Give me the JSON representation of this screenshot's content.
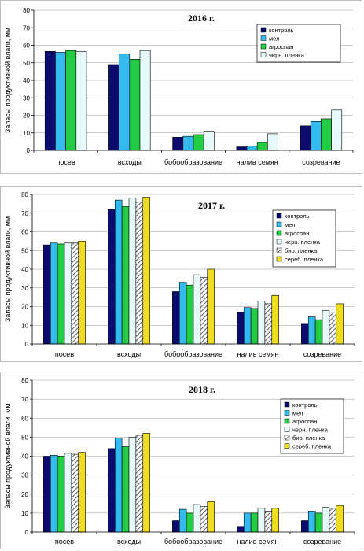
{
  "colors": {
    "kontrol": "#0c0c6e",
    "mel": "#33bbee",
    "agrospan": "#22cc44",
    "chern_plenka": "#e6fafa",
    "bio_plenka": "hatch",
    "sereb_plenka": "#eedd22"
  },
  "chart_data": [
    {
      "type": "bar",
      "title": "2016 г.",
      "ylabel": "Запасы продуктивной влаги, мм",
      "xlabel": "",
      "ylim": [
        0,
        80
      ],
      "yticks": [
        0,
        10,
        20,
        30,
        40,
        50,
        60,
        70,
        80
      ],
      "grid": true,
      "legend_position": "top-right",
      "categories": [
        "посев",
        "всходы",
        "бобообразование",
        "налив семян",
        "созревание"
      ],
      "series": [
        {
          "name": "контроль",
          "color_key": "kontrol",
          "values": [
            56.5,
            49,
            7.5,
            2,
            14
          ]
        },
        {
          "name": "мел",
          "color_key": "mel",
          "values": [
            56,
            55,
            8,
            2.5,
            16.5
          ]
        },
        {
          "name": "агроспан",
          "color_key": "agrospan",
          "values": [
            57,
            52,
            9,
            4.5,
            18
          ]
        },
        {
          "name": "черн. пленка",
          "color_key": "chern_plenka",
          "values": [
            56.5,
            57,
            10.5,
            9.5,
            23
          ]
        }
      ]
    },
    {
      "type": "bar",
      "title": "2017 г.",
      "ylabel": "Запасы продуктивной влаги, мм",
      "xlabel": "",
      "ylim": [
        0,
        80
      ],
      "yticks": [
        0,
        10,
        20,
        30,
        40,
        50,
        60,
        70,
        80
      ],
      "grid": true,
      "legend_position": "top-right",
      "categories": [
        "посев",
        "всходы",
        "бобообразование",
        "налив семян",
        "созревание"
      ],
      "series": [
        {
          "name": "контроль",
          "color_key": "kontrol",
          "values": [
            53,
            72,
            28,
            17,
            11
          ]
        },
        {
          "name": "мел",
          "color_key": "mel",
          "values": [
            54,
            77,
            33,
            19.5,
            14.5
          ]
        },
        {
          "name": "агроспан",
          "color_key": "agrospan",
          "values": [
            53.5,
            73.5,
            31.5,
            19,
            13
          ]
        },
        {
          "name": "черн. пленка",
          "color_key": "chern_plenka",
          "values": [
            54,
            78,
            37,
            23,
            18
          ]
        },
        {
          "name": "био. пленка",
          "color_key": "bio_plenka",
          "values": [
            54,
            76,
            35.5,
            21.5,
            17
          ]
        },
        {
          "name": "сереб. пленка",
          "color_key": "sereb_plenka",
          "values": [
            55,
            78.5,
            40,
            26,
            21.5
          ]
        }
      ]
    },
    {
      "type": "bar",
      "title": "2018 г.",
      "ylabel": "Запасы продуктивной влаги, мм",
      "xlabel": "",
      "ylim": [
        0,
        80
      ],
      "yticks": [
        0,
        10,
        20,
        30,
        40,
        50,
        60,
        70,
        80
      ],
      "grid": true,
      "legend_position": "top-right",
      "categories": [
        "посев",
        "всходы",
        "бобообразование",
        "налив семян",
        "созревание"
      ],
      "series": [
        {
          "name": "контроль",
          "color_key": "kontrol",
          "values": [
            40,
            44,
            6,
            3,
            6
          ]
        },
        {
          "name": "мел",
          "color_key": "mel",
          "values": [
            40.5,
            49.5,
            12,
            10,
            11
          ]
        },
        {
          "name": "агроспан",
          "color_key": "agrospan",
          "values": [
            40,
            45,
            10,
            10,
            10
          ]
        },
        {
          "name": "черн. пленка",
          "color_key": "chern_plenka",
          "values": [
            41.5,
            50,
            14.5,
            12.5,
            13
          ]
        },
        {
          "name": "био. пленка",
          "color_key": "bio_plenka",
          "values": [
            41,
            51,
            13.5,
            11,
            12.5
          ]
        },
        {
          "name": "сереб. пленка",
          "color_key": "sereb_plenka",
          "values": [
            42,
            52,
            16,
            12.5,
            14
          ]
        }
      ]
    }
  ]
}
